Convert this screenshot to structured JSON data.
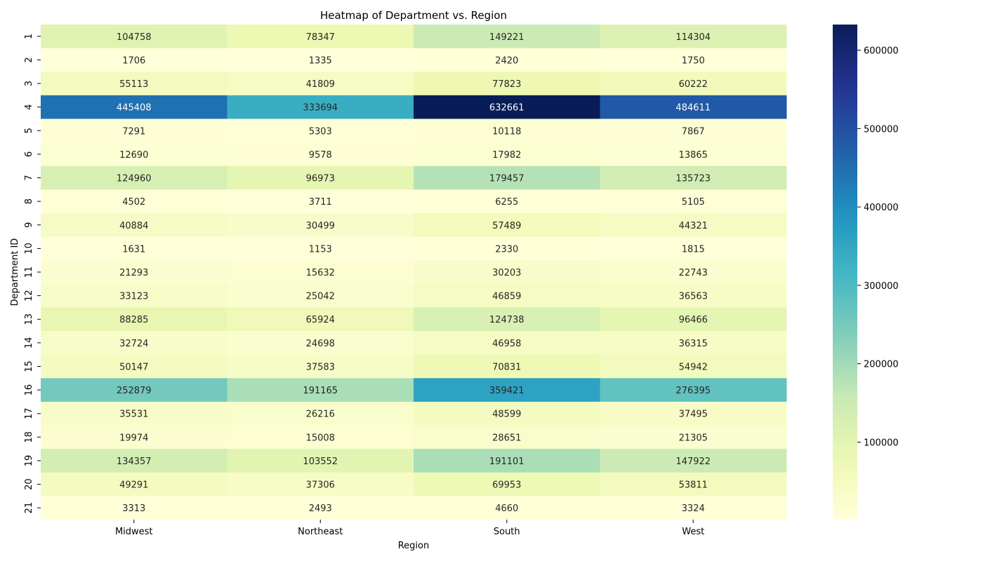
{
  "chart_data": {
    "type": "heatmap",
    "title": "Heatmap of Department vs. Region",
    "xlabel": "Region",
    "ylabel": "Department ID",
    "x_categories": [
      "Midwest",
      "Northeast",
      "South",
      "West"
    ],
    "y_categories": [
      "1",
      "2",
      "3",
      "4",
      "5",
      "6",
      "7",
      "8",
      "9",
      "10",
      "11",
      "12",
      "13",
      "14",
      "15",
      "16",
      "17",
      "18",
      "19",
      "20",
      "21"
    ],
    "values": [
      [
        104758,
        78347,
        149221,
        114304
      ],
      [
        1706,
        1335,
        2420,
        1750
      ],
      [
        55113,
        41809,
        77823,
        60222
      ],
      [
        445408,
        333694,
        632661,
        484611
      ],
      [
        7291,
        5303,
        10118,
        7867
      ],
      [
        12690,
        9578,
        17982,
        13865
      ],
      [
        124960,
        96973,
        179457,
        135723
      ],
      [
        4502,
        3711,
        6255,
        5105
      ],
      [
        40884,
        30499,
        57489,
        44321
      ],
      [
        1631,
        1153,
        2330,
        1815
      ],
      [
        21293,
        15632,
        30203,
        22743
      ],
      [
        33123,
        25042,
        46859,
        36563
      ],
      [
        88285,
        65924,
        124738,
        96466
      ],
      [
        32724,
        24698,
        46958,
        36315
      ],
      [
        50147,
        37583,
        70831,
        54942
      ],
      [
        252879,
        191165,
        359421,
        276395
      ],
      [
        35531,
        26216,
        48599,
        37495
      ],
      [
        19974,
        15008,
        28651,
        21305
      ],
      [
        134357,
        103552,
        191101,
        147922
      ],
      [
        49291,
        37306,
        69953,
        53811
      ],
      [
        3313,
        2493,
        4660,
        3324
      ]
    ],
    "colormap": "YlGnBu",
    "colorbar": {
      "min": 1153,
      "max": 632661,
      "ticks": [
        100000,
        200000,
        300000,
        400000,
        500000,
        600000
      ],
      "tick_labels": [
        "100000",
        "200000",
        "300000",
        "400000",
        "500000",
        "600000"
      ]
    },
    "annotated": true,
    "grid": false
  }
}
